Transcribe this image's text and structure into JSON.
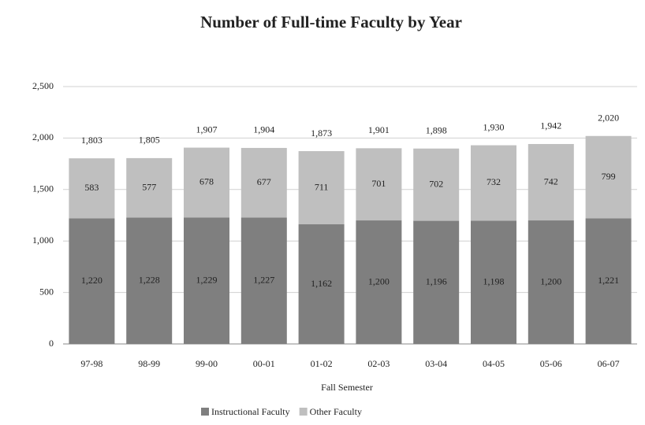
{
  "chart_data": {
    "type": "stacked_bar",
    "title": "Number of Full-time Faculty by Year",
    "x_label": "Fall Semester",
    "categories": [
      "97-98",
      "98-99",
      "99-00",
      "00-01",
      "01-02",
      "02-03",
      "03-04",
      "04-05",
      "05-06",
      "06-07"
    ],
    "series": [
      {
        "name": "Instructional Faculty",
        "color": "#7f7f7f",
        "values": [
          1220,
          1228,
          1229,
          1227,
          1162,
          1200,
          1196,
          1198,
          1200,
          1221
        ],
        "value_labels": [
          "1,220",
          "1,228",
          "1,229",
          "1,227",
          "1,162",
          "1,200",
          "1,196",
          "1,198",
          "1,200",
          "1,221"
        ]
      },
      {
        "name": "Other Faculty",
        "color": "#bfbfbf",
        "values": [
          583,
          577,
          678,
          677,
          711,
          701,
          702,
          732,
          742,
          799
        ]
      }
    ],
    "totals": [
      1803,
      1805,
      1907,
      1904,
      1873,
      1901,
      1898,
      1930,
      1942,
      2020
    ],
    "total_labels": [
      "1,803",
      "1,805",
      "1,907",
      "1,904",
      "1,873",
      "1,901",
      "1,898",
      "1,930",
      "1,942",
      "2,020"
    ],
    "ylim": [
      0,
      2500
    ],
    "yticks": [
      0,
      500,
      {
        "value": 1000,
        "label": "1,000"
      },
      {
        "value": 1500,
        "label": "1,500"
      },
      {
        "value": 2000,
        "label": "2,000"
      },
      {
        "value": 2500,
        "label": "2,500"
      }
    ],
    "grid": true,
    "legend": "bottom"
  }
}
